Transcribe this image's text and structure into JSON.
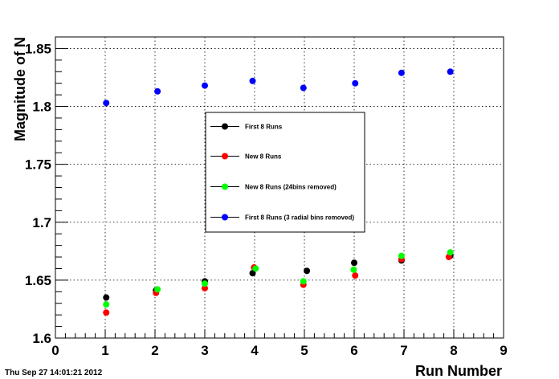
{
  "timestamp": "Thu Sep 27 14:01:21 2012",
  "chart_data": {
    "type": "scatter",
    "title": "",
    "xlabel": "Run Number",
    "ylabel": "Magnitude of N",
    "xlim": [
      0,
      9
    ],
    "ylim": [
      1.6,
      1.86
    ],
    "grid": true,
    "legend_position": "center",
    "x_ticks": [
      {
        "value": 0,
        "label": "0"
      },
      {
        "value": 1,
        "label": "1"
      },
      {
        "value": 2,
        "label": "2"
      },
      {
        "value": 3,
        "label": "3"
      },
      {
        "value": 4,
        "label": "4"
      },
      {
        "value": 5,
        "label": "5"
      },
      {
        "value": 6,
        "label": "6"
      },
      {
        "value": 7,
        "label": "7"
      },
      {
        "value": 8,
        "label": "8"
      },
      {
        "value": 9,
        "label": "9"
      }
    ],
    "y_ticks": [
      {
        "value": 1.6,
        "label": "1.6"
      },
      {
        "value": 1.65,
        "label": "1.65"
      },
      {
        "value": 1.7,
        "label": "1.7"
      },
      {
        "value": 1.75,
        "label": "1.75"
      },
      {
        "value": 1.8,
        "label": "1.8"
      },
      {
        "value": 1.85,
        "label": "1.85"
      }
    ],
    "series": [
      {
        "name": "First 8 Runs",
        "color": "#000000",
        "x": [
          1.02,
          2.02,
          3.0,
          3.96,
          5.05,
          6.0,
          6.95,
          7.93
        ],
        "y": [
          1.635,
          1.641,
          1.649,
          1.656,
          1.658,
          1.665,
          1.667,
          1.671
        ]
      },
      {
        "name": "New 8 Runs",
        "color": "#ff0000",
        "x": [
          1.02,
          2.02,
          3.0,
          3.99,
          4.98,
          6.02,
          6.95,
          7.9
        ],
        "y": [
          1.622,
          1.639,
          1.643,
          1.661,
          1.646,
          1.654,
          1.668,
          1.67
        ]
      },
      {
        "name": "New 8 Runs (24bins removed)",
        "color": "#00ff00",
        "x": [
          1.02,
          2.05,
          3.0,
          4.02,
          4.98,
          5.99,
          6.95,
          7.93
        ],
        "y": [
          1.629,
          1.642,
          1.647,
          1.66,
          1.649,
          1.659,
          1.671,
          1.674
        ]
      },
      {
        "name": "First 8 Runs (3 radial bins removed)",
        "color": "#0000ff",
        "x": [
          1.02,
          2.05,
          3.0,
          3.96,
          4.98,
          6.02,
          6.95,
          7.93
        ],
        "y": [
          1.803,
          1.813,
          1.818,
          1.822,
          1.816,
          1.82,
          1.829,
          1.83
        ]
      }
    ]
  }
}
